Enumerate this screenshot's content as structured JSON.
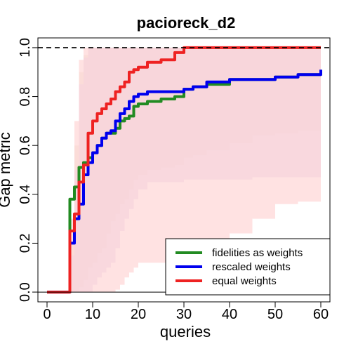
{
  "chart_data": {
    "type": "line",
    "title": "pacioreck_d2",
    "xlabel": "queries",
    "ylabel": "Gap metric",
    "xlim": [
      -2,
      62
    ],
    "ylim": [
      -0.04,
      1.04
    ],
    "x_ticks": [
      0,
      10,
      20,
      30,
      40,
      50,
      60
    ],
    "y_ticks": [
      0.0,
      0.2,
      0.4,
      0.6,
      0.8,
      1.0
    ],
    "x_tick_labels": [
      "0",
      "10",
      "20",
      "30",
      "40",
      "50",
      "60"
    ],
    "y_tick_labels": [
      "0.0",
      "0.2",
      "0.4",
      "0.6",
      "0.8",
      "1.0"
    ],
    "reference_line_y": 1.0,
    "baseline_y": 0.0,
    "legend_position": "bottom-right",
    "series": [
      {
        "name": "fidelities as weights",
        "color": "#228b22",
        "x": [
          0,
          4,
          5,
          6,
          7,
          8,
          9,
          10,
          11,
          12,
          13,
          14,
          15,
          16,
          17,
          18,
          19,
          20,
          22,
          25,
          28,
          30,
          32,
          35,
          40,
          45,
          50,
          55,
          60
        ],
        "y": [
          0,
          0,
          0.38,
          0.43,
          0.51,
          0.53,
          0.55,
          0.57,
          0.6,
          0.63,
          0.65,
          0.65,
          0.67,
          0.7,
          0.71,
          0.72,
          0.76,
          0.77,
          0.78,
          0.79,
          0.8,
          0.83,
          0.84,
          0.85,
          0.87,
          0.87,
          0.88,
          0.89,
          0.89
        ],
        "band_color": "#e8e0c8",
        "band_lower": [
          0,
          0,
          0,
          0,
          0.02,
          0.05,
          0.1,
          0.12,
          0.16,
          0.18,
          0.24,
          0.29,
          0.32,
          0.36,
          0.38,
          0.42,
          0.46,
          0.48,
          0.5,
          0.51,
          0.52,
          0.55,
          0.56,
          0.58,
          0.61,
          0.64,
          0.65,
          0.66,
          0.68
        ],
        "band_upper": [
          0,
          0,
          0.2,
          0.6,
          0.9,
          0.97,
          1.0,
          1.0,
          1.0,
          1.0,
          1.0,
          1.0,
          1.0,
          1.0,
          1.0,
          1.0,
          1.0,
          1.0,
          1.0,
          1.0,
          1.0,
          1.0,
          1.0,
          1.0,
          1.0,
          1.0,
          1.0,
          1.0,
          1.0
        ]
      },
      {
        "name": "rescaled weights",
        "color": "#0000ee",
        "x": [
          0,
          4,
          5,
          6,
          7,
          8,
          9,
          10,
          11,
          12,
          13,
          14,
          15,
          16,
          17,
          18,
          19,
          20,
          22,
          25,
          28,
          30,
          32,
          35,
          40,
          45,
          50,
          55,
          60
        ],
        "y": [
          0,
          0,
          0.2,
          0.3,
          0.36,
          0.48,
          0.53,
          0.57,
          0.6,
          0.63,
          0.65,
          0.66,
          0.7,
          0.73,
          0.75,
          0.78,
          0.8,
          0.81,
          0.82,
          0.82,
          0.82,
          0.83,
          0.84,
          0.86,
          0.87,
          0.87,
          0.88,
          0.89,
          0.91
        ],
        "band_color": "#dcc8e8",
        "band_lower": [
          0,
          0,
          0,
          0,
          0,
          0,
          0,
          0.03,
          0.06,
          0.08,
          0.1,
          0.12,
          0.18,
          0.25,
          0.3,
          0.34,
          0.38,
          0.42,
          0.45,
          0.45,
          0.45,
          0.46,
          0.46,
          0.46,
          0.46,
          0.47,
          0.47,
          0.47,
          0.47
        ],
        "band_upper": [
          0,
          0,
          0.15,
          0.5,
          0.85,
          0.96,
          1.0,
          1.0,
          1.0,
          1.0,
          1.0,
          1.0,
          1.0,
          1.0,
          1.0,
          1.0,
          1.0,
          1.0,
          1.0,
          1.0,
          1.0,
          1.0,
          1.0,
          1.0,
          1.0,
          1.0,
          1.0,
          1.0,
          1.0
        ]
      },
      {
        "name": "equal weights",
        "color": "#ee2222",
        "x": [
          0,
          4,
          5,
          6,
          7,
          8,
          9,
          10,
          11,
          12,
          13,
          14,
          15,
          16,
          17,
          18,
          19,
          20,
          22,
          25,
          28,
          30,
          32,
          35,
          40,
          45,
          50,
          55,
          60
        ],
        "y": [
          0,
          0,
          0.25,
          0.32,
          0.45,
          0.52,
          0.65,
          0.7,
          0.73,
          0.75,
          0.77,
          0.79,
          0.82,
          0.84,
          0.86,
          0.9,
          0.91,
          0.92,
          0.94,
          0.95,
          0.98,
          1.0,
          1.0,
          1.0,
          1.0,
          1.0,
          1.0,
          1.0,
          1.0
        ],
        "band_color": "#ffd8d8",
        "band_lower": [
          0,
          0,
          0,
          0,
          0,
          0,
          0,
          0,
          0,
          0,
          0,
          0,
          0.01,
          0.03,
          0.06,
          0.08,
          0.1,
          0.12,
          0.12,
          0.12,
          0.13,
          0.13,
          0.17,
          0.2,
          0.24,
          0.3,
          0.36,
          0.37,
          0.36
        ],
        "band_upper": [
          0,
          0,
          0.3,
          0.7,
          0.95,
          1.0,
          1.0,
          1.0,
          1.0,
          1.0,
          1.0,
          1.0,
          1.0,
          1.0,
          1.0,
          1.0,
          1.0,
          1.0,
          1.0,
          1.0,
          1.0,
          1.0,
          1.0,
          1.0,
          1.0,
          1.0,
          1.0,
          1.0,
          1.0
        ]
      }
    ]
  }
}
